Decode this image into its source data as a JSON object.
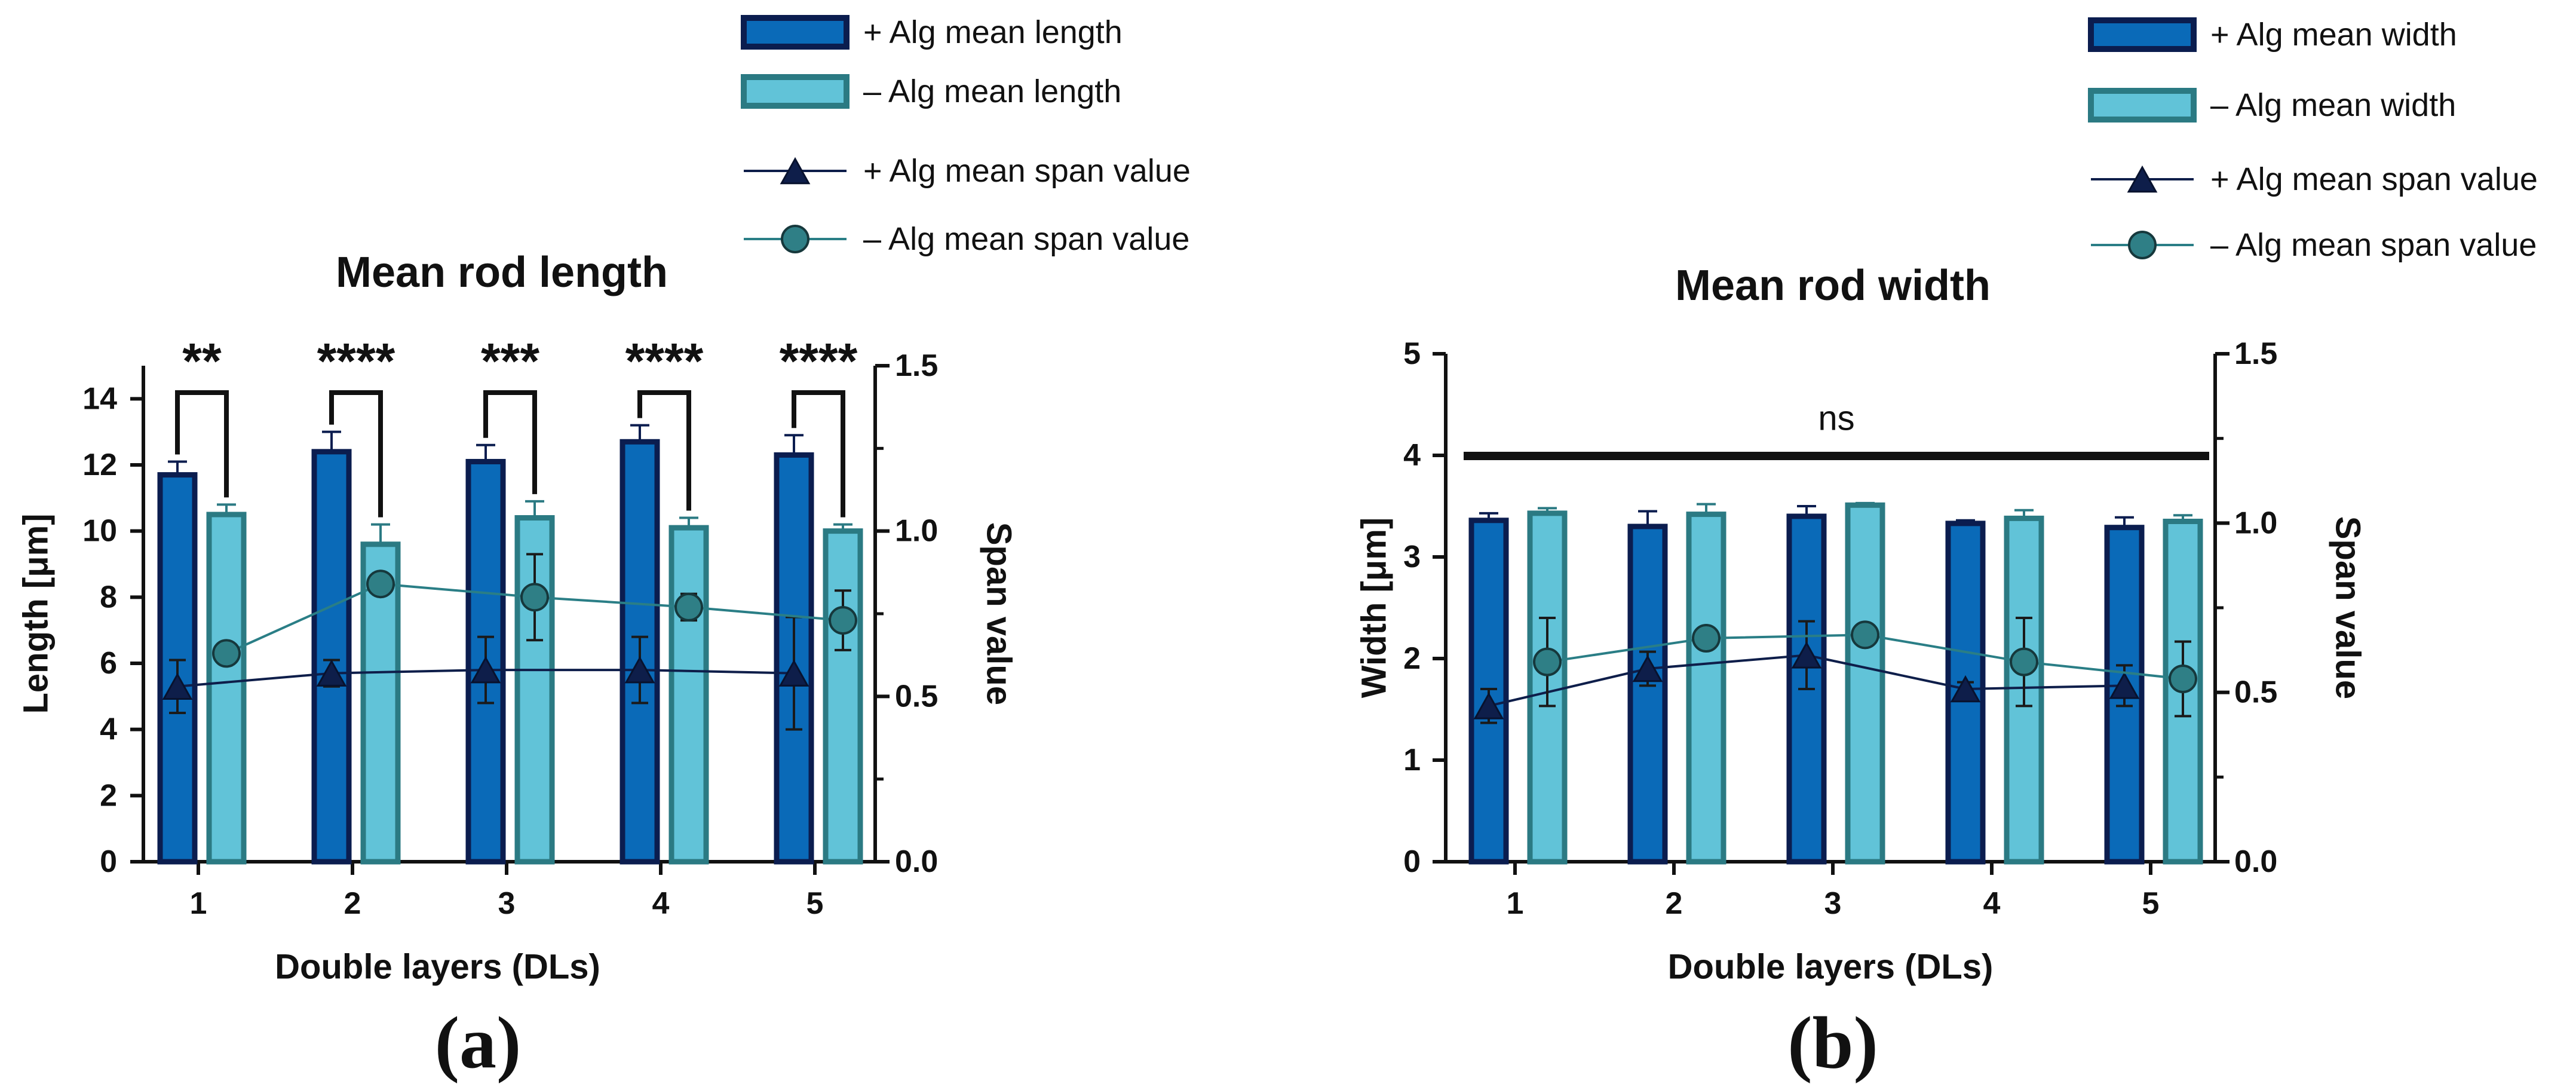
{
  "colors": {
    "plus_bar_fill": "#0a6ab8",
    "plus_bar_edge": "#0b1d4f",
    "minus_bar_fill": "#61c3d8",
    "minus_bar_edge": "#2b7a83",
    "plus_line": "#0e1e4a",
    "minus_line": "#2a7e86",
    "minus_marker": "#2f7f86",
    "axis": "#111111"
  },
  "chart_data": [
    {
      "panel_label": "(a)",
      "type": "bar",
      "title": "Mean rod length",
      "xlabel": "Double layers (DLs)",
      "ylabel": "Length [μm]",
      "y2label": "Span value",
      "categories": [
        "1",
        "2",
        "3",
        "4",
        "5"
      ],
      "ylim": [
        0,
        15
      ],
      "yticks": [
        "0",
        "2",
        "4",
        "6",
        "8",
        "10",
        "12",
        "14"
      ],
      "y2lim": [
        0,
        1.5
      ],
      "y2ticks": [
        "0.0",
        "0.5",
        "1.0",
        "1.5"
      ],
      "series": [
        {
          "name": "+ Alg  mean length",
          "kind": "bar",
          "axis": "left",
          "style": "plus",
          "values": [
            11.7,
            12.4,
            12.1,
            12.7,
            12.3
          ],
          "errors": [
            0.4,
            0.6,
            0.5,
            0.5,
            0.6
          ]
        },
        {
          "name": "– Alg mean length",
          "kind": "bar",
          "axis": "left",
          "style": "minus",
          "values": [
            10.5,
            9.6,
            10.4,
            10.1,
            10.0
          ],
          "errors": [
            0.3,
            0.6,
            0.5,
            0.3,
            0.2
          ]
        },
        {
          "name": "+ Alg mean span value",
          "kind": "line",
          "marker": "triangle",
          "axis": "right",
          "style": "plus",
          "values": [
            0.53,
            0.57,
            0.58,
            0.58,
            0.57
          ],
          "errors": [
            0.08,
            0.04,
            0.1,
            0.1,
            0.17
          ]
        },
        {
          "name": "– Alg mean span value",
          "kind": "line",
          "marker": "circle",
          "axis": "right",
          "style": "minus",
          "values": [
            0.63,
            0.84,
            0.8,
            0.77,
            0.73
          ],
          "errors": [
            0.01,
            0.03,
            0.13,
            0.04,
            0.09
          ]
        }
      ],
      "significance": [
        "**",
        "****",
        "***",
        "****",
        "****"
      ],
      "legend_position": "top-right"
    },
    {
      "panel_label": "(b)",
      "type": "bar",
      "title": "Mean rod width",
      "xlabel": "Double layers (DLs)",
      "ylabel": "Width [μm]",
      "y2label": "Span value",
      "categories": [
        "1",
        "2",
        "3",
        "4",
        "5"
      ],
      "ylim": [
        0,
        5
      ],
      "yticks": [
        "0",
        "1",
        "2",
        "3",
        "4",
        "5"
      ],
      "y2lim": [
        0,
        1.5
      ],
      "y2ticks": [
        "0.0",
        "0.5",
        "1.0",
        "1.5"
      ],
      "series": [
        {
          "name": "+ Alg mean width",
          "kind": "bar",
          "axis": "left",
          "style": "plus",
          "values": [
            3.36,
            3.3,
            3.4,
            3.33,
            3.29
          ],
          "errors": [
            0.07,
            0.15,
            0.1,
            0.03,
            0.1
          ]
        },
        {
          "name": "– Alg mean width",
          "kind": "bar",
          "axis": "left",
          "style": "minus",
          "values": [
            3.43,
            3.42,
            3.51,
            3.38,
            3.35
          ],
          "errors": [
            0.05,
            0.1,
            0.02,
            0.08,
            0.06
          ]
        },
        {
          "name": "+ Alg mean span value",
          "kind": "line",
          "marker": "triangle",
          "axis": "right",
          "style": "plus",
          "values": [
            0.46,
            0.57,
            0.61,
            0.51,
            0.52
          ],
          "errors": [
            0.05,
            0.05,
            0.1,
            0.02,
            0.06
          ]
        },
        {
          "name": "– Alg mean span value",
          "kind": "line",
          "marker": "circle",
          "axis": "right",
          "style": "minus",
          "values": [
            0.59,
            0.66,
            0.67,
            0.59,
            0.54
          ],
          "errors": [
            0.13,
            0.02,
            0.02,
            0.13,
            0.11
          ]
        }
      ],
      "significance_line": "ns",
      "legend_position": "top-right"
    }
  ]
}
